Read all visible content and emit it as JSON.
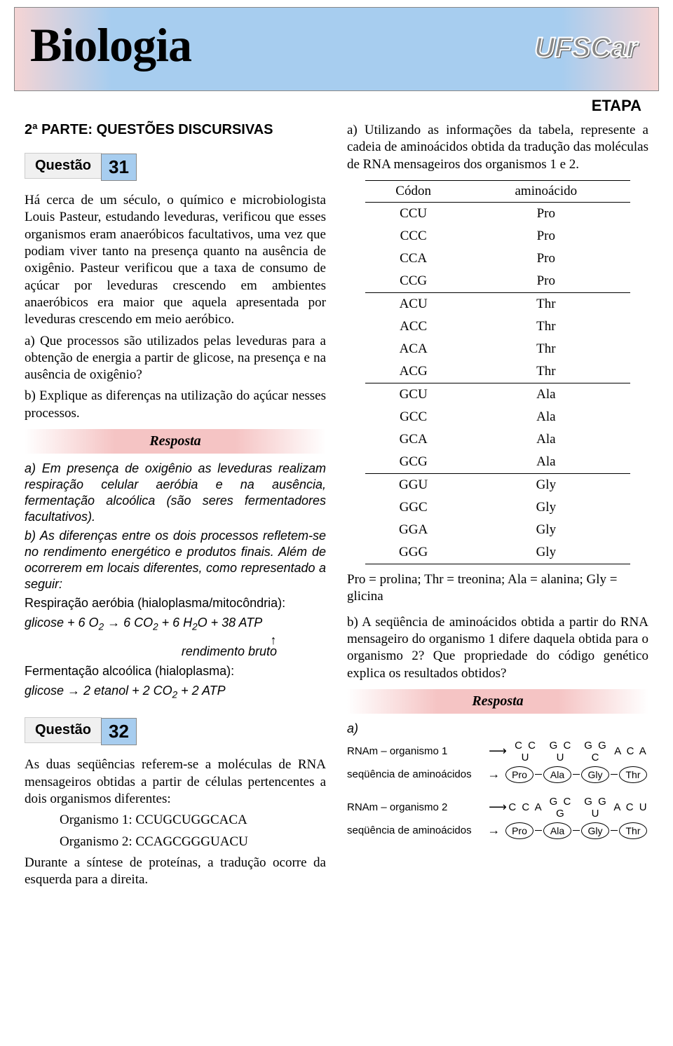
{
  "header": {
    "title": "Biologia",
    "university": "UFSCar",
    "etapa": "ETAPA"
  },
  "left": {
    "section_title": "2ª PARTE: QUESTÕES DISCURSIVAS",
    "q31_label": "Questão",
    "q31_num": "31",
    "q31_text": "Há cerca de um século, o químico e microbiologista Louis Pasteur, estudando leveduras, verificou que esses organismos eram anaeróbicos facultativos, uma vez que podiam viver tanto na presença quanto na ausência de oxigênio. Pasteur verificou que a taxa de consumo de açúcar por leveduras crescendo em ambientes anaeróbicos era maior que aquela apresentada por leveduras crescendo em meio aeróbico.",
    "q31_a": "a) Que processos são utilizados pelas leveduras para a obtenção de energia a partir de glicose, na presença e na ausência de oxigênio?",
    "q31_b": "b) Explique as diferenças na utilização do açúcar nesses processos.",
    "resposta_label": "Resposta",
    "ans_a": "a) Em presença de oxigênio as leveduras realizam respiração celular aeróbia e na ausência, fermentação alcoólica (são seres fermentadores facultativos).",
    "ans_b": "b) As diferenças entre os dois processos refletem-se no rendimento energético e produtos finais. Além de ocorrerem em locais diferentes, como representado a seguir:",
    "resp_line": "Respiração aeróbia (hialoplasma/mitocôndria):",
    "formula1": "glicose + 6 O₂ → 6 CO₂ + 6 H₂O + 38 ATP",
    "rend": "rendimento bruto",
    "ferm_line": "Fermentação alcoólica (hialoplasma):",
    "formula2": "glicose → 2 etanol + 2 CO₂ + 2 ATP",
    "q32_label": "Questão",
    "q32_num": "32",
    "q32_text": "As duas seqüências referem-se a moléculas de RNA mensageiros obtidas a partir de células pertencentes a dois organismos diferentes:",
    "org1": "Organismo 1: CCUGCUGGCACA",
    "org2": "Organismo 2: CCAGCGGGUACU",
    "q32_text2": "Durante a síntese de proteínas, a tradução ocorre da esquerda para a direita."
  },
  "right": {
    "q32_a": "a) Utilizando as informações da tabela, represente a cadeia de aminoácidos obtida da tradução das moléculas de RNA mensageiros dos organismos 1 e 2.",
    "table_h1": "Códon",
    "table_h2": "aminoácido",
    "table_rows": [
      {
        "c": "CCU",
        "a": "Pro",
        "sep": false
      },
      {
        "c": "CCC",
        "a": "Pro",
        "sep": false
      },
      {
        "c": "CCA",
        "a": "Pro",
        "sep": false
      },
      {
        "c": "CCG",
        "a": "Pro",
        "sep": false
      },
      {
        "c": "ACU",
        "a": "Thr",
        "sep": true
      },
      {
        "c": "ACC",
        "a": "Thr",
        "sep": false
      },
      {
        "c": "ACA",
        "a": "Thr",
        "sep": false
      },
      {
        "c": "ACG",
        "a": "Thr",
        "sep": false
      },
      {
        "c": "GCU",
        "a": "Ala",
        "sep": true
      },
      {
        "c": "GCC",
        "a": "Ala",
        "sep": false
      },
      {
        "c": "GCA",
        "a": "Ala",
        "sep": false
      },
      {
        "c": "GCG",
        "a": "Ala",
        "sep": false
      },
      {
        "c": "GGU",
        "a": "Gly",
        "sep": true
      },
      {
        "c": "GGC",
        "a": "Gly",
        "sep": false
      },
      {
        "c": "GGA",
        "a": "Gly",
        "sep": false
      },
      {
        "c": "GGG",
        "a": "Gly",
        "sep": false
      }
    ],
    "legend": "Pro = prolina; Thr = treonina; Ala = alanina; Gly = glicina",
    "q32_b": "b) A seqüência de aminoácidos obtida a partir do RNA mensageiro do organismo 1 difere daquela obtida para o organismo 2? Que propriedade do código genético explica os resultados obtidos?",
    "resposta_label": "Resposta",
    "ans_a_label": "a)",
    "rna1_label": "RNAm – organismo 1",
    "rna1_codons": [
      "C C U",
      "G C U",
      "G G C",
      "A C A"
    ],
    "seq_label": "seqüência de aminoácidos",
    "aa_seq": [
      "Pro",
      "Ala",
      "Gly",
      "Thr"
    ],
    "rna2_label": "RNAm – organismo 2",
    "rna2_codons": [
      "C C A",
      "G C G",
      "G G U",
      "A C U"
    ]
  }
}
